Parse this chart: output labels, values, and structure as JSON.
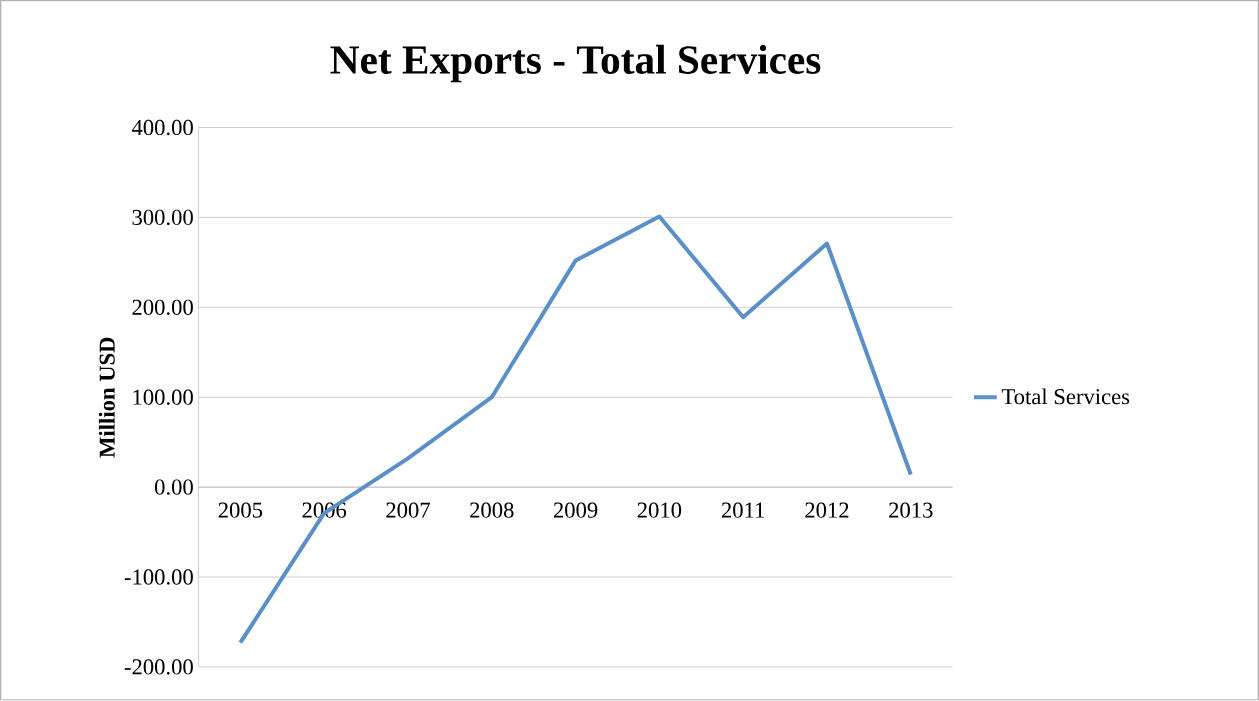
{
  "chart_data": {
    "type": "line",
    "title": "Net Exports - Total Services",
    "ylabel": "Million USD",
    "categories": [
      "2005",
      "2006",
      "2007",
      "2008",
      "2009",
      "2010",
      "2011",
      "2012",
      "2013"
    ],
    "series": [
      {
        "name": "Total Services",
        "color": "#5b8fc9",
        "values": [
          -173,
          -29,
          32,
          100,
          252,
          301,
          189,
          271,
          14
        ]
      }
    ],
    "ylim": [
      -200,
      400
    ],
    "yticks": [
      {
        "value": -200,
        "label": "-200.00"
      },
      {
        "value": -100,
        "label": "-100.00"
      },
      {
        "value": 0,
        "label": "0.00"
      },
      {
        "value": 100,
        "label": "100.00"
      },
      {
        "value": 200,
        "label": "200.00"
      },
      {
        "value": 300,
        "label": "300.00"
      },
      {
        "value": 400,
        "label": "400.00"
      }
    ],
    "grid": "y",
    "legend": "right",
    "marker": "none",
    "line_style": "solid"
  }
}
